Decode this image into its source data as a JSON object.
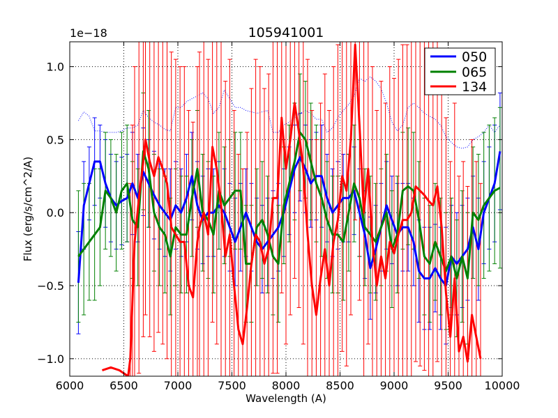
{
  "chart_data": {
    "type": "line",
    "title": "105941001",
    "xlabel": "Wavelength (A)",
    "ylabel": "Flux (erg/s/cm^2/A)",
    "y_offset_label": "1e−18",
    "xlim": [
      6000,
      10000
    ],
    "ylim": [
      -1.12,
      1.17
    ],
    "xticks": [
      6000,
      6500,
      7000,
      7500,
      8000,
      8500,
      9000,
      9500,
      10000
    ],
    "xtick_labels": [
      "6000",
      "6500",
      "7000",
      "7500",
      "8000",
      "8500",
      "9000",
      "9500",
      "10000"
    ],
    "yticks": [
      -1.0,
      -0.5,
      0.0,
      0.5,
      1.0
    ],
    "ytick_labels": [
      "−1.0",
      "−0.5",
      "0.0",
      "0.5",
      "1.0"
    ],
    "grid": true,
    "legend_position": "top-right",
    "series": [
      {
        "name": "050",
        "color": "#0000ff",
        "x": [
          6080,
          6130,
          6180,
          6230,
          6280,
          6330,
          6380,
          6430,
          6480,
          6530,
          6580,
          6630,
          6680,
          6730,
          6780,
          6830,
          6880,
          6930,
          6980,
          7030,
          7080,
          7130,
          7180,
          7230,
          7280,
          7330,
          7380,
          7430,
          7480,
          7530,
          7580,
          7630,
          7680,
          7730,
          7780,
          7830,
          7880,
          7930,
          7980,
          8030,
          8080,
          8130,
          8180,
          8230,
          8280,
          8330,
          8380,
          8430,
          8480,
          8530,
          8580,
          8630,
          8680,
          8730,
          8780,
          8830,
          8880,
          8930,
          8980,
          9030,
          9080,
          9130,
          9180,
          9230,
          9280,
          9330,
          9380,
          9430,
          9480,
          9530,
          9580,
          9630,
          9680,
          9730,
          9780,
          9830,
          9880,
          9930,
          9980
        ],
        "y": [
          -0.48,
          0.05,
          0.2,
          0.35,
          0.35,
          0.2,
          0.1,
          0.05,
          0.08,
          0.1,
          0.2,
          0.1,
          0.28,
          0.2,
          0.12,
          0.05,
          0.0,
          -0.05,
          0.05,
          0.0,
          0.1,
          0.25,
          0.05,
          -0.05,
          0.0,
          0.0,
          0.05,
          0.0,
          -0.1,
          -0.2,
          -0.1,
          0.0,
          -0.1,
          -0.2,
          -0.25,
          -0.2,
          -0.15,
          -0.1,
          0.0,
          0.15,
          0.3,
          0.38,
          0.3,
          0.2,
          0.25,
          0.25,
          0.1,
          0.0,
          0.05,
          0.1,
          0.1,
          0.15,
          0.0,
          -0.15,
          -0.38,
          -0.25,
          -0.1,
          0.05,
          -0.05,
          -0.15,
          -0.1,
          -0.1,
          -0.2,
          -0.4,
          -0.45,
          -0.45,
          -0.38,
          -0.45,
          -0.5,
          -0.3,
          -0.35,
          -0.3,
          -0.25,
          -0.1,
          -0.25,
          0.0,
          0.1,
          0.2,
          0.42
        ],
        "err": [
          0.35,
          0.3,
          0.25,
          0.3,
          0.25,
          0.3,
          0.3,
          0.3,
          0.3,
          0.3,
          0.35,
          0.3,
          0.3,
          0.3,
          0.3,
          0.3,
          0.3,
          0.35,
          0.3,
          0.3,
          0.3,
          0.3,
          0.3,
          0.3,
          0.3,
          0.3,
          0.3,
          0.3,
          0.3,
          0.3,
          0.3,
          0.3,
          0.3,
          0.3,
          0.3,
          0.3,
          0.3,
          0.3,
          0.3,
          0.3,
          0.3,
          0.3,
          0.3,
          0.3,
          0.3,
          0.35,
          0.3,
          0.3,
          0.3,
          0.3,
          0.3,
          0.3,
          0.3,
          0.3,
          0.35,
          0.3,
          0.3,
          0.3,
          0.3,
          0.35,
          0.3,
          0.3,
          0.3,
          0.35,
          0.35,
          0.35,
          0.3,
          0.35,
          0.4,
          0.35,
          0.35,
          0.35,
          0.35,
          0.35,
          0.35,
          0.35,
          0.35,
          0.4,
          0.4
        ]
      },
      {
        "name": "065",
        "color": "#008000",
        "x": [
          6080,
          6130,
          6180,
          6230,
          6280,
          6330,
          6380,
          6430,
          6480,
          6530,
          6580,
          6630,
          6680,
          6730,
          6780,
          6830,
          6880,
          6930,
          6980,
          7030,
          7080,
          7130,
          7180,
          7230,
          7280,
          7330,
          7380,
          7430,
          7480,
          7530,
          7580,
          7630,
          7680,
          7730,
          7780,
          7830,
          7880,
          7930,
          7980,
          8030,
          8080,
          8130,
          8180,
          8230,
          8280,
          8330,
          8380,
          8430,
          8480,
          8530,
          8580,
          8630,
          8680,
          8730,
          8780,
          8830,
          8880,
          8930,
          8980,
          9030,
          9080,
          9130,
          9180,
          9230,
          9280,
          9330,
          9380,
          9430,
          9480,
          9530,
          9580,
          9630,
          9680,
          9730,
          9780,
          9830,
          9880,
          9930,
          9980
        ],
        "y": [
          -0.3,
          -0.25,
          -0.2,
          -0.15,
          -0.1,
          0.15,
          0.1,
          0.0,
          0.15,
          0.2,
          -0.05,
          -0.1,
          0.42,
          0.3,
          0.0,
          -0.1,
          -0.15,
          -0.3,
          -0.1,
          -0.15,
          -0.15,
          0.1,
          0.3,
          0.0,
          -0.05,
          -0.15,
          0.15,
          0.05,
          0.1,
          0.15,
          0.15,
          -0.35,
          -0.35,
          -0.1,
          -0.05,
          -0.15,
          -0.3,
          -0.35,
          0.05,
          0.2,
          0.35,
          0.55,
          0.5,
          0.35,
          0.2,
          0.1,
          -0.05,
          -0.15,
          -0.15,
          -0.2,
          0.0,
          0.2,
          0.1,
          -0.1,
          -0.15,
          -0.2,
          -0.1,
          0.0,
          -0.25,
          -0.15,
          0.15,
          0.18,
          0.15,
          -0.05,
          -0.3,
          -0.35,
          -0.2,
          -0.3,
          -0.4,
          -0.3,
          -0.45,
          -0.3,
          -0.45,
          0.0,
          -0.05,
          0.05,
          0.1,
          0.15,
          0.17
        ],
        "err": [
          0.45,
          0.45,
          0.4,
          0.45,
          0.4,
          0.4,
          0.4,
          0.4,
          0.4,
          0.4,
          0.4,
          0.4,
          0.4,
          0.4,
          0.4,
          0.4,
          0.4,
          0.4,
          0.4,
          0.4,
          0.4,
          0.4,
          0.4,
          0.4,
          0.4,
          0.4,
          0.4,
          0.4,
          0.4,
          0.4,
          0.4,
          0.4,
          0.4,
          0.4,
          0.4,
          0.4,
          0.4,
          0.4,
          0.4,
          0.4,
          0.4,
          0.4,
          0.4,
          0.4,
          0.4,
          0.4,
          0.4,
          0.4,
          0.4,
          0.4,
          0.4,
          0.4,
          0.4,
          0.4,
          0.4,
          0.4,
          0.4,
          0.4,
          0.4,
          0.4,
          0.4,
          0.4,
          0.4,
          0.4,
          0.4,
          0.4,
          0.4,
          0.4,
          0.4,
          0.4,
          0.4,
          0.45,
          0.45,
          0.45,
          0.45,
          0.5,
          0.5,
          0.5,
          0.55
        ]
      },
      {
        "name": "134",
        "color": "#ff0000",
        "x": [
          6300,
          6380,
          6460,
          6540,
          6560,
          6580,
          6600,
          6640,
          6680,
          6700,
          6740,
          6780,
          6820,
          6860,
          6900,
          6940,
          6980,
          7020,
          7060,
          7100,
          7140,
          7180,
          7200,
          7240,
          7280,
          7320,
          7360,
          7400,
          7440,
          7480,
          7520,
          7560,
          7600,
          7640,
          7680,
          7720,
          7760,
          7800,
          7840,
          7880,
          7920,
          7960,
          8000,
          8040,
          8080,
          8120,
          8160,
          8200,
          8240,
          8280,
          8320,
          8360,
          8400,
          8440,
          8480,
          8520,
          8560,
          8600,
          8640,
          8680,
          8720,
          8760,
          8800,
          8840,
          8880,
          8920,
          8960,
          9000,
          9040,
          9080,
          9120,
          9160,
          9200,
          9240,
          9280,
          9320,
          9360,
          9400,
          9440,
          9480,
          9520,
          9560,
          9600,
          9640,
          9680,
          9720,
          9760,
          9800
        ],
        "y": [
          -1.08,
          -1.06,
          -1.08,
          -1.12,
          -1.0,
          -0.6,
          -0.2,
          0.1,
          0.35,
          0.5,
          0.35,
          0.25,
          0.38,
          0.3,
          0.2,
          -0.1,
          -0.15,
          -0.2,
          -0.2,
          -0.5,
          -0.58,
          -0.2,
          -0.1,
          0.0,
          -0.15,
          0.45,
          0.3,
          0.05,
          -0.3,
          -0.15,
          -0.5,
          -0.8,
          -0.9,
          -0.65,
          -0.35,
          -0.15,
          -0.2,
          -0.35,
          -0.25,
          0.1,
          0.1,
          0.65,
          0.3,
          0.5,
          0.75,
          0.55,
          0.3,
          -0.15,
          -0.5,
          -0.7,
          -0.45,
          -0.25,
          -0.5,
          -0.2,
          -0.05,
          0.25,
          0.15,
          0.5,
          1.15,
          0.6,
          0.0,
          0.3,
          -0.2,
          -0.5,
          -0.3,
          -0.45,
          -0.2,
          -0.28,
          -0.15,
          -0.05,
          -0.05,
          0.0,
          0.18,
          0.15,
          0.12,
          0.08,
          0.05,
          0.18,
          -0.1,
          -0.55,
          -0.85,
          -0.45,
          -0.95,
          -0.85,
          -1.02,
          -0.7,
          -0.85,
          -1.0
        ],
        "err": [
          0.0,
          0.0,
          0.0,
          0.0,
          1.2,
          1.2,
          1.2,
          1.2,
          1.2,
          1.2,
          1.2,
          1.2,
          1.2,
          1.2,
          1.2,
          1.2,
          1.2,
          1.2,
          1.2,
          1.2,
          1.2,
          1.2,
          1.2,
          1.2,
          1.2,
          1.2,
          1.2,
          1.2,
          1.2,
          1.2,
          1.2,
          1.2,
          1.2,
          1.2,
          1.2,
          1.2,
          1.2,
          1.2,
          1.2,
          1.2,
          1.2,
          1.2,
          1.2,
          1.2,
          1.2,
          1.2,
          1.2,
          1.2,
          1.2,
          1.2,
          1.2,
          1.2,
          1.2,
          1.2,
          1.2,
          1.2,
          1.2,
          1.2,
          1.2,
          1.2,
          1.2,
          1.2,
          1.2,
          1.2,
          1.2,
          1.2,
          1.2,
          1.2,
          1.2,
          1.2,
          1.2,
          1.2,
          1.2,
          1.2,
          1.2,
          1.2,
          1.2,
          1.2,
          1.2,
          1.2,
          1.2,
          1.2,
          1.2,
          1.2,
          1.2,
          1.2,
          1.2,
          1.2
        ]
      }
    ],
    "reference_line": {
      "name": "error-envelope",
      "color": "#0000ff",
      "style": "dotted",
      "x": [
        6080,
        6130,
        6180,
        6230,
        6280,
        6330,
        6380,
        6430,
        6480,
        6530,
        6580,
        6630,
        6680,
        6730,
        6780,
        6830,
        6880,
        6930,
        6980,
        7030,
        7080,
        7130,
        7180,
        7230,
        7280,
        7330,
        7380,
        7430,
        7480,
        7530,
        7580,
        7630,
        7680,
        7730,
        7780,
        7830,
        7880,
        7930,
        7980,
        8030,
        8080,
        8130,
        8180,
        8230,
        8280,
        8330,
        8380,
        8430,
        8480,
        8530,
        8580,
        8630,
        8680,
        8730,
        8780,
        8830,
        8880,
        8930,
        8980,
        9030,
        9080,
        9130,
        9180,
        9230,
        9280,
        9330,
        9380,
        9430,
        9480,
        9530,
        9580,
        9630,
        9680,
        9730,
        9780,
        9830,
        9880,
        9930,
        9980
      ],
      "y": [
        0.63,
        0.69,
        0.66,
        0.56,
        0.56,
        0.55,
        0.55,
        0.55,
        0.56,
        0.58,
        0.58,
        0.6,
        0.7,
        0.65,
        0.62,
        0.6,
        0.57,
        0.56,
        0.72,
        0.72,
        0.76,
        0.78,
        0.8,
        0.82,
        0.78,
        0.68,
        0.72,
        0.84,
        0.78,
        0.72,
        0.72,
        0.7,
        0.69,
        0.68,
        0.69,
        0.7,
        0.55,
        0.55,
        0.6,
        0.62,
        0.65,
        0.68,
        0.7,
        0.68,
        0.64,
        0.64,
        0.55,
        0.58,
        0.65,
        0.7,
        0.74,
        0.8,
        0.92,
        0.9,
        0.93,
        0.9,
        0.85,
        0.75,
        0.62,
        0.56,
        0.6,
        0.72,
        0.75,
        0.72,
        0.68,
        0.66,
        0.64,
        0.6,
        0.52,
        0.48,
        0.45,
        0.44,
        0.45,
        0.5,
        0.52,
        0.55,
        0.6,
        0.55,
        0.6
      ]
    }
  }
}
